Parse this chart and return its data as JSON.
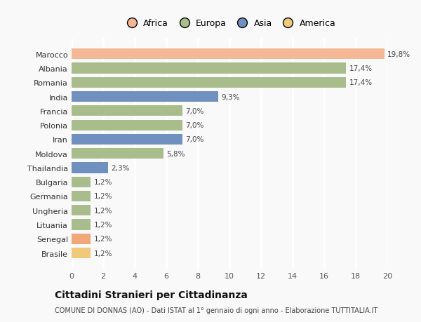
{
  "countries": [
    "Brasile",
    "Senegal",
    "Lituania",
    "Ungheria",
    "Germania",
    "Bulgaria",
    "Thailandia",
    "Moldova",
    "Iran",
    "Polonia",
    "Francia",
    "India",
    "Romania",
    "Albania",
    "Marocco"
  ],
  "values": [
    1.2,
    1.2,
    1.2,
    1.2,
    1.2,
    1.2,
    2.3,
    5.8,
    7.0,
    7.0,
    7.0,
    9.3,
    17.4,
    17.4,
    19.8
  ],
  "labels": [
    "1,2%",
    "1,2%",
    "1,2%",
    "1,2%",
    "1,2%",
    "1,2%",
    "2,3%",
    "5,8%",
    "7,0%",
    "7,0%",
    "7,0%",
    "9,3%",
    "17,4%",
    "17,4%",
    "19,8%"
  ],
  "colors": [
    "#f0c97a",
    "#f0a878",
    "#a8bc8c",
    "#a8bc8c",
    "#a8bc8c",
    "#a8bc8c",
    "#7090c0",
    "#a8bc8c",
    "#7090c0",
    "#a8bc8c",
    "#a8bc8c",
    "#7090c0",
    "#a8bc8c",
    "#a8bc8c",
    "#f4b896"
  ],
  "legend_labels": [
    "Africa",
    "Europa",
    "Asia",
    "America"
  ],
  "legend_colors": [
    "#f4b896",
    "#a8bc8c",
    "#7090c0",
    "#f0c97a"
  ],
  "title": "Cittadini Stranieri per Cittadinanza",
  "subtitle": "COMUNE DI DONNAS (AO) - Dati ISTAT al 1° gennaio di ogni anno - Elaborazione TUTTITALIA.IT",
  "xlim": [
    0,
    20
  ],
  "xticks": [
    0,
    2,
    4,
    6,
    8,
    10,
    12,
    14,
    16,
    18,
    20
  ],
  "bg_color": "#f9f9f9",
  "grid_color": "#ffffff"
}
